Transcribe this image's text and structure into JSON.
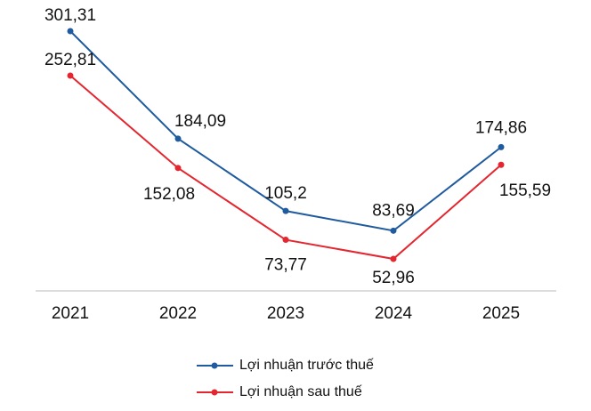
{
  "chart_data": {
    "type": "line",
    "categories": [
      "2021",
      "2022",
      "2023",
      "2024",
      "2025"
    ],
    "series": [
      {
        "name": "Lợi nhuận trước thuế",
        "color": "#1f5b9e",
        "values": [
          301.31,
          184.09,
          105.2,
          83.69,
          174.86
        ],
        "value_labels": [
          "301,31",
          "184,09",
          "105,2",
          "83,69",
          "174,86"
        ]
      },
      {
        "name": "Lợi nhuận sau thuế",
        "color": "#e3262f",
        "values": [
          252.81,
          152.08,
          73.77,
          52.96,
          155.59
        ],
        "value_labels": [
          "252,81",
          "152,08",
          "73,77",
          "52,96",
          "155,59"
        ]
      }
    ]
  }
}
